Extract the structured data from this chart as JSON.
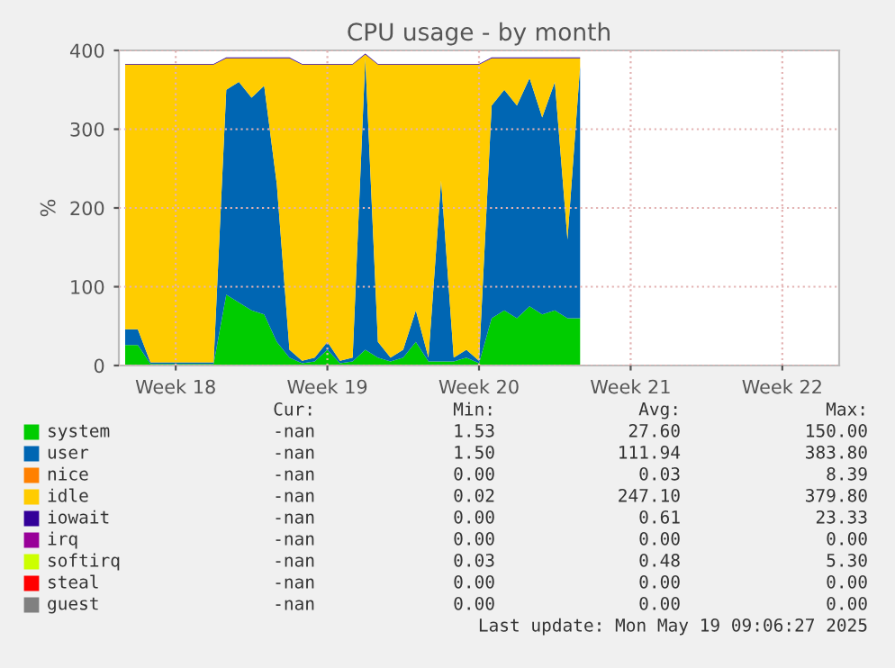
{
  "chart_data": {
    "type": "area",
    "stacked": true,
    "title": "CPU usage - by month",
    "ylabel": "%",
    "categories": [
      null,
      null,
      null,
      null,
      "Week 18",
      null,
      null,
      null,
      null,
      null,
      null,
      null,
      null,
      null,
      null,
      null,
      "Week 19",
      null,
      null,
      null,
      null,
      null,
      null,
      null,
      null,
      null,
      null,
      null,
      "Week 20",
      null,
      null,
      null,
      null,
      null,
      null,
      null,
      null,
      null,
      null,
      null,
      "Week 21",
      null,
      null,
      null,
      null,
      null,
      null,
      null,
      null,
      null,
      null,
      null,
      "Week 22",
      null,
      null,
      null,
      null
    ],
    "series": [
      {
        "name": "system",
        "color": "#00cc00",
        "values": [
          26,
          26,
          2,
          2,
          2,
          2,
          2,
          2,
          90,
          80,
          70,
          65,
          30,
          10,
          3,
          5,
          20,
          3,
          5,
          20,
          10,
          5,
          10,
          30,
          5,
          5,
          5,
          10,
          3,
          60,
          70,
          60,
          75,
          65,
          70,
          60,
          60,
          null,
          null,
          null,
          null,
          null,
          null,
          null,
          null,
          null,
          null,
          null,
          null,
          null,
          null,
          null,
          null,
          null,
          null,
          null,
          null
        ]
      },
      {
        "name": "user",
        "color": "#0066b3",
        "values": [
          20,
          20,
          2,
          2,
          2,
          2,
          2,
          2,
          260,
          280,
          270,
          290,
          200,
          10,
          3,
          5,
          10,
          3,
          5,
          370,
          20,
          5,
          10,
          40,
          5,
          230,
          5,
          10,
          3,
          270,
          280,
          270,
          290,
          250,
          290,
          100,
          320,
          null,
          null,
          null,
          null,
          null,
          null,
          null,
          null,
          null,
          null,
          null,
          null,
          null,
          null,
          null,
          null,
          null,
          null,
          null,
          null
        ]
      },
      {
        "name": "nice",
        "color": "#ff8000",
        "values": [
          null,
          null,
          null,
          null,
          null,
          null,
          null,
          null,
          null,
          null,
          null,
          null,
          null,
          null,
          null,
          null,
          null,
          null,
          null,
          null,
          null,
          null,
          null,
          null,
          null,
          null,
          null,
          null,
          null,
          null,
          null,
          null,
          null,
          null,
          null,
          null,
          null,
          null,
          null,
          null,
          null,
          null,
          null,
          null,
          null,
          null,
          null,
          null,
          null,
          null,
          null,
          null,
          null,
          null,
          null,
          null,
          null
        ]
      },
      {
        "name": "idle",
        "color": "#ffcc00",
        "values": [
          336,
          336,
          378,
          378,
          378,
          378,
          378,
          378,
          40,
          30,
          50,
          35,
          160,
          370,
          376,
          372,
          352,
          376,
          372,
          5,
          352,
          372,
          362,
          312,
          372,
          147,
          372,
          362,
          376,
          60,
          40,
          60,
          25,
          75,
          30,
          230,
          10,
          null,
          null,
          null,
          null,
          null,
          null,
          null,
          null,
          null,
          null,
          null,
          null,
          null,
          null,
          null,
          null,
          null,
          null,
          null,
          null
        ]
      },
      {
        "name": "iowait",
        "color": "#330099",
        "values": [
          1,
          1,
          1,
          1,
          1,
          1,
          1,
          1,
          1,
          1,
          1,
          1,
          1,
          1,
          1,
          1,
          1,
          1,
          1,
          1,
          1,
          1,
          1,
          1,
          1,
          1,
          1,
          1,
          1,
          1,
          1,
          1,
          1,
          1,
          1,
          1,
          1,
          null,
          null,
          null,
          null,
          null,
          null,
          null,
          null,
          null,
          null,
          null,
          null,
          null,
          null,
          null,
          null,
          null,
          null,
          null,
          null
        ]
      },
      {
        "name": "irq",
        "color": "#990099",
        "values": [
          null,
          null,
          null,
          null,
          null,
          null,
          null,
          null,
          null,
          null,
          null,
          null,
          null,
          null,
          null,
          null,
          null,
          null,
          null,
          null,
          null,
          null,
          null,
          null,
          null,
          null,
          null,
          null,
          null,
          null,
          null,
          null,
          null,
          null,
          null,
          null,
          null,
          null,
          null,
          null,
          null,
          null,
          null,
          null,
          null,
          null,
          null,
          null,
          null,
          null,
          null,
          null,
          null,
          null,
          null,
          null,
          null
        ]
      },
      {
        "name": "softirq",
        "color": "#ccff00",
        "values": [
          null,
          null,
          null,
          null,
          null,
          null,
          null,
          null,
          null,
          null,
          null,
          null,
          null,
          null,
          null,
          null,
          null,
          null,
          null,
          null,
          null,
          null,
          null,
          null,
          null,
          null,
          null,
          null,
          null,
          null,
          null,
          null,
          null,
          null,
          null,
          null,
          null,
          null,
          null,
          null,
          null,
          null,
          null,
          null,
          null,
          null,
          null,
          null,
          null,
          null,
          null,
          null,
          null,
          null,
          null,
          null,
          null
        ]
      },
      {
        "name": "steal",
        "color": "#ff0000",
        "values": [
          null,
          null,
          null,
          null,
          null,
          null,
          null,
          null,
          null,
          null,
          null,
          null,
          null,
          null,
          null,
          null,
          null,
          null,
          null,
          null,
          null,
          null,
          null,
          null,
          null,
          null,
          null,
          null,
          null,
          null,
          null,
          null,
          null,
          null,
          null,
          null,
          null,
          null,
          null,
          null,
          null,
          null,
          null,
          null,
          null,
          null,
          null,
          null,
          null,
          null,
          null,
          null,
          null,
          null,
          null,
          null,
          null
        ]
      },
      {
        "name": "guest",
        "color": "#808080",
        "values": [
          null,
          null,
          null,
          null,
          null,
          null,
          null,
          null,
          null,
          null,
          null,
          null,
          null,
          null,
          null,
          null,
          null,
          null,
          null,
          null,
          null,
          null,
          null,
          null,
          null,
          null,
          null,
          null,
          null,
          null,
          null,
          null,
          null,
          null,
          null,
          null,
          null,
          null,
          null,
          null,
          null,
          null,
          null,
          null,
          null,
          null,
          null,
          null,
          null,
          null,
          null,
          null,
          null,
          null,
          null,
          null,
          null
        ]
      }
    ],
    "ylim": [
      0,
      400
    ],
    "yticks": [
      0,
      100,
      200,
      300,
      400
    ],
    "grid": true,
    "legend": "bottom",
    "annotations": [
      "Cur: Min: Avg: Max:",
      "-nan 1.53 27.60 150.00",
      "-nan 1.50 111.94 383.80",
      "-nan 0.00 0.03 8.39",
      "-nan 0.02 247.10 379.80",
      "-nan 0.00 0.61 23.33",
      "-nan 0.00 0.00 0.00",
      "-nan 0.03 0.48 5.30",
      "-nan 0.00 0.00 0.00",
      "-nan 0.00 0.00 0.00",
      "Last update: Mon May 19 09:06:27 2025"
    ]
  }
}
